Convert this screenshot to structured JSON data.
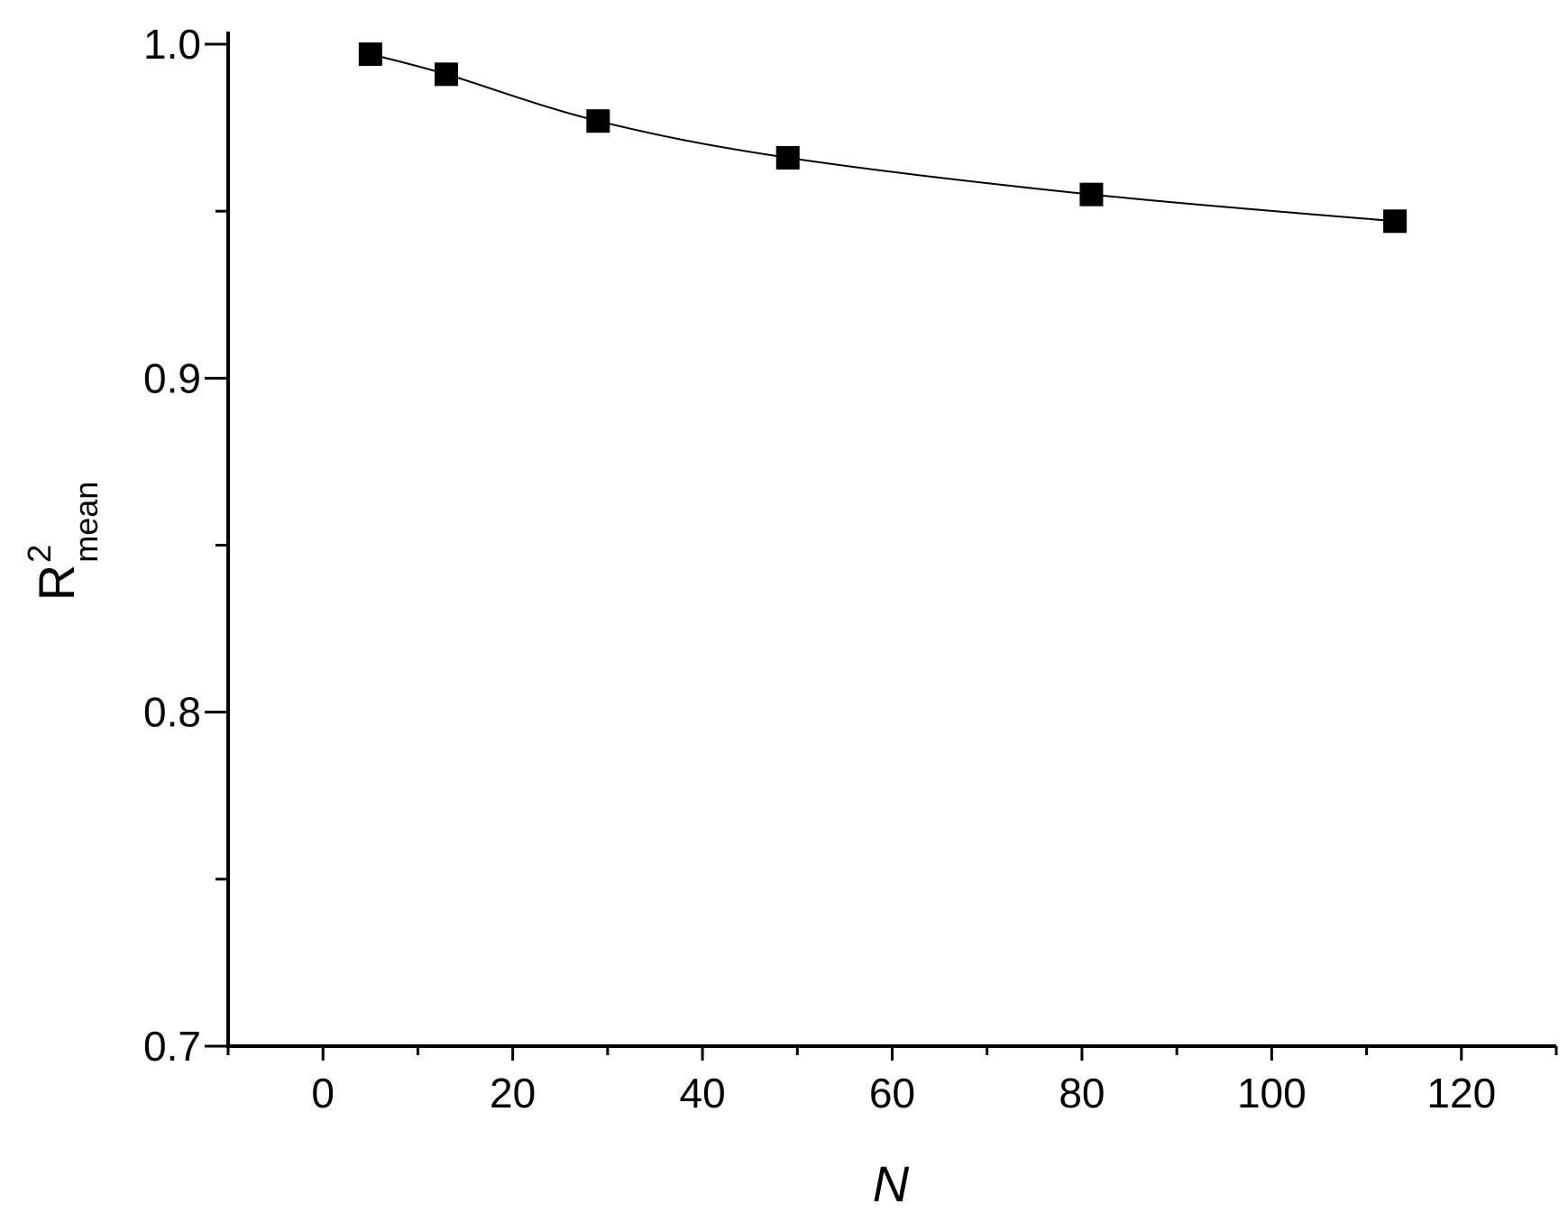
{
  "chart_data": {
    "type": "line",
    "title": "",
    "xlabel": "N",
    "ylabel": {
      "base": "R",
      "superscript": "2",
      "subscript": "mean"
    },
    "xlim": [
      -10,
      130
    ],
    "ylim": [
      0.7,
      1.0
    ],
    "x_ticks": [
      0,
      20,
      40,
      60,
      80,
      100,
      120
    ],
    "x_tick_labels": [
      "0",
      "20",
      "40",
      "60",
      "80",
      "100",
      "120"
    ],
    "x_minor_ticks": [
      -10,
      10,
      30,
      50,
      70,
      90,
      110,
      130
    ],
    "y_ticks": [
      0.7,
      0.8,
      0.9,
      1.0
    ],
    "y_tick_labels": [
      "0.7",
      "0.8",
      "0.9",
      "1.0"
    ],
    "y_minor_ticks": [
      0.75,
      0.85,
      0.95
    ],
    "grid": false,
    "legend": "none",
    "series": [
      {
        "marker": "square",
        "color": "#000000",
        "points": [
          {
            "x": 5,
            "y": 0.997
          },
          {
            "x": 13,
            "y": 0.991
          },
          {
            "x": 29,
            "y": 0.977
          },
          {
            "x": 49,
            "y": 0.966
          },
          {
            "x": 81,
            "y": 0.955
          },
          {
            "x": 113,
            "y": 0.947
          }
        ]
      }
    ]
  }
}
